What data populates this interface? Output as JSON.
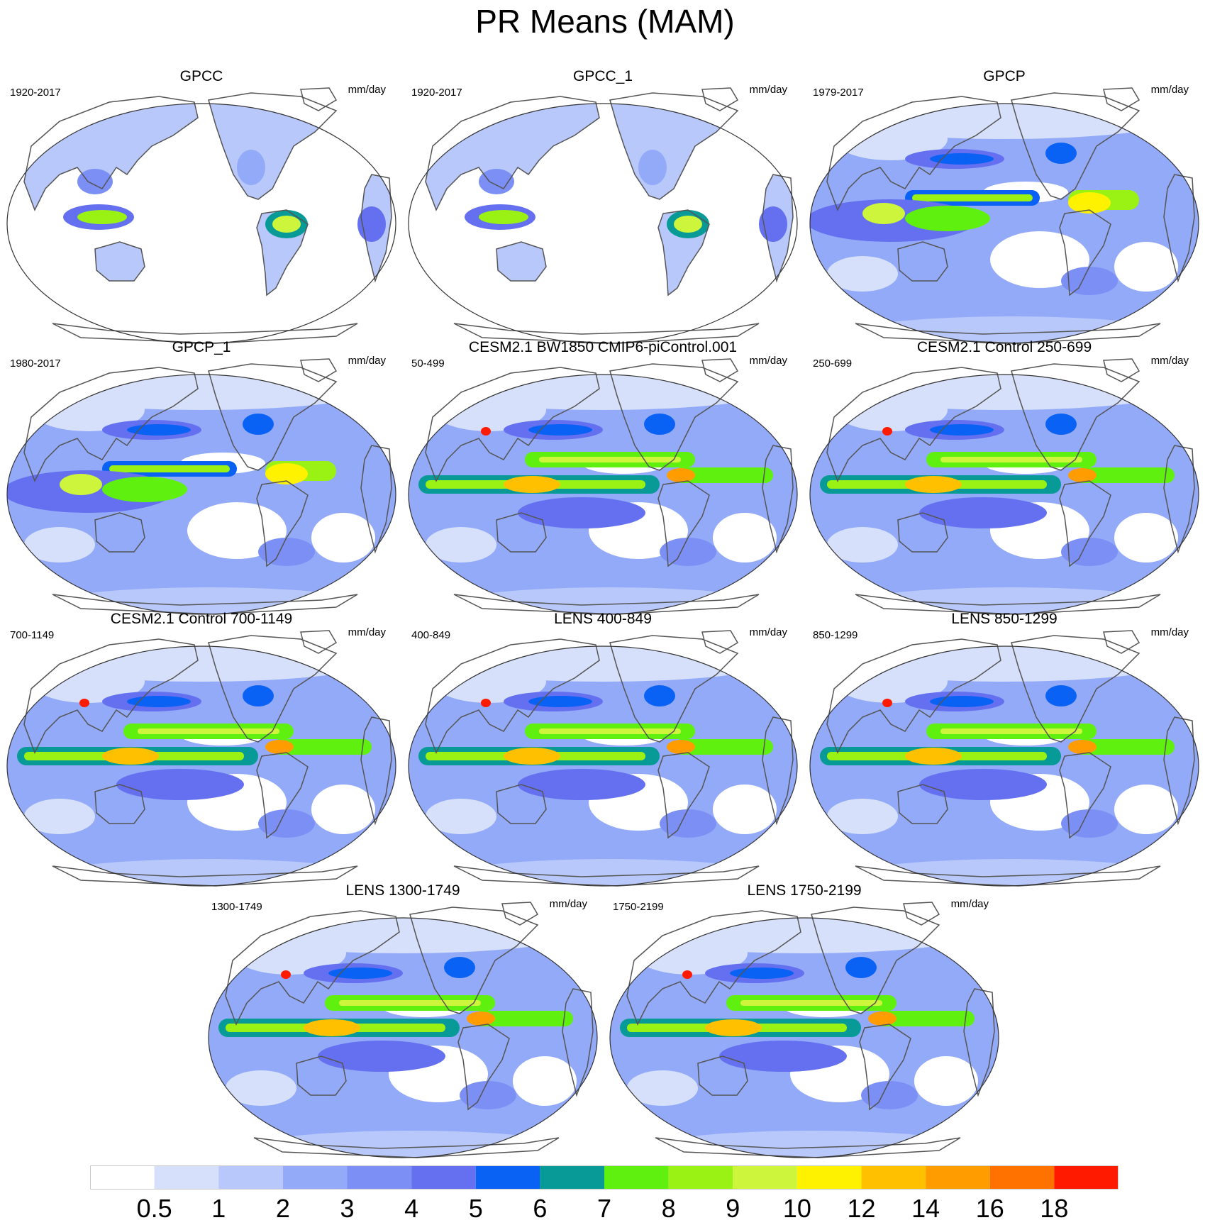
{
  "title": "PR Means (MAM)",
  "panels": [
    {
      "title": "GPCC",
      "left_label": "1920-2017",
      "units": "mm/day",
      "kind": "obs_land"
    },
    {
      "title": "GPCC_1",
      "left_label": "1920-2017",
      "units": "mm/day",
      "kind": "obs_land"
    },
    {
      "title": "GPCP",
      "left_label": "1979-2017",
      "units": "mm/day",
      "kind": "obs"
    },
    {
      "title": "GPCP_1",
      "left_label": "1980-2017",
      "units": "mm/day",
      "kind": "obs"
    },
    {
      "title": "CESM2.1 BW1850 CMIP6-piControl.001",
      "left_label": "50-499",
      "units": "mm/day",
      "kind": "model"
    },
    {
      "title": "CESM2.1 Control 250-699",
      "left_label": "250-699",
      "units": "mm/day",
      "kind": "model"
    },
    {
      "title": "CESM2.1 Control 700-1149",
      "left_label": "700-1149",
      "units": "mm/day",
      "kind": "model"
    },
    {
      "title": "LENS 400-849",
      "left_label": "400-849",
      "units": "mm/day",
      "kind": "model"
    },
    {
      "title": "LENS 850-1299",
      "left_label": "850-1299",
      "units": "mm/day",
      "kind": "model"
    },
    {
      "title": "LENS 1300-1749",
      "left_label": "1300-1749",
      "units": "mm/day",
      "kind": "model"
    },
    {
      "title": "LENS 1750-2199",
      "left_label": "1750-2199",
      "units": "mm/day",
      "kind": "model"
    }
  ],
  "colorbar": {
    "labels": [
      "0.5",
      "1",
      "2",
      "3",
      "4",
      "5",
      "6",
      "7",
      "8",
      "9",
      "10",
      "12",
      "14",
      "16",
      "18"
    ],
    "colors": [
      "#ffffff",
      "#d6e0fb",
      "#b8c8fa",
      "#93aaf9",
      "#7b8ff5",
      "#6470ef",
      "#0a62f5",
      "#079a97",
      "#60f010",
      "#9af214",
      "#cdf53c",
      "#fff200",
      "#ffc000",
      "#ff9c00",
      "#ff7200",
      "#ff1a00"
    ]
  }
}
